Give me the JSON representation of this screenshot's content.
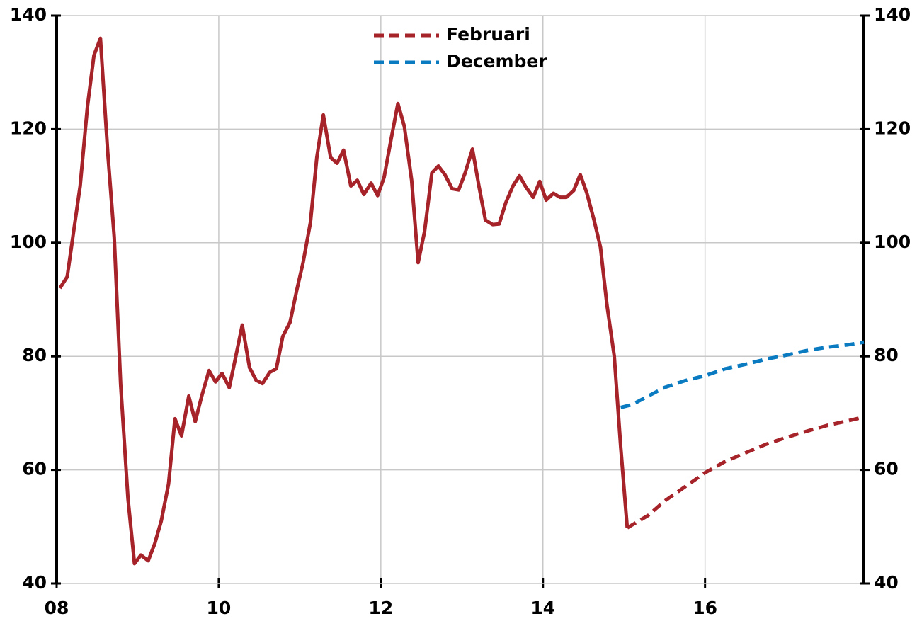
{
  "chart_data": {
    "type": "line",
    "xlim": [
      2008,
      2017.96
    ],
    "xticks": [
      {
        "value": 2008,
        "label": "08"
      },
      {
        "value": 2010,
        "label": "10"
      },
      {
        "value": 2012,
        "label": "12"
      },
      {
        "value": 2014,
        "label": "14"
      },
      {
        "value": 2016,
        "label": "16"
      }
    ],
    "ylim": [
      40,
      140
    ],
    "yticks": [
      40,
      60,
      80,
      100,
      120,
      140
    ],
    "y2lim": [
      40,
      140
    ],
    "y2ticks": [
      40,
      60,
      80,
      100,
      120,
      140
    ],
    "grid": true,
    "legend": "top",
    "series": [
      {
        "color": "#a6232a",
        "dashed": false,
        "x": [
          2008.04,
          2008.13,
          2008.21,
          2008.29,
          2008.38,
          2008.46,
          2008.54,
          2008.63,
          2008.71,
          2008.79,
          2008.88,
          2008.96,
          2009.04,
          2009.13,
          2009.21,
          2009.29,
          2009.38,
          2009.46,
          2009.54,
          2009.63,
          2009.71,
          2009.79,
          2009.88,
          2009.96,
          2010.04,
          2010.13,
          2010.21,
          2010.29,
          2010.38,
          2010.46,
          2010.54,
          2010.63,
          2010.71,
          2010.79,
          2010.88,
          2010.96,
          2011.04,
          2011.13,
          2011.21,
          2011.29,
          2011.38,
          2011.46,
          2011.54,
          2011.63,
          2011.71,
          2011.79,
          2011.88,
          2011.96,
          2012.04,
          2012.13,
          2012.21,
          2012.29,
          2012.38,
          2012.46,
          2012.54,
          2012.63,
          2012.71,
          2012.79,
          2012.88,
          2012.96,
          2013.04,
          2013.13,
          2013.21,
          2013.29,
          2013.38,
          2013.46,
          2013.54,
          2013.63,
          2013.71,
          2013.79,
          2013.88,
          2013.96,
          2014.04,
          2014.13,
          2014.21,
          2014.29,
          2014.38,
          2014.46,
          2014.54,
          2014.63,
          2014.71,
          2014.79,
          2014.88,
          2014.96,
          2015.04
        ],
        "values": [
          92,
          94,
          102,
          110,
          124,
          133,
          136,
          116,
          101,
          75,
          55,
          43.5,
          45,
          44,
          47,
          51,
          57.5,
          69,
          66,
          73,
          68.5,
          73,
          77.5,
          75.5,
          77,
          74.5,
          80,
          85.5,
          78,
          75.8,
          75.2,
          77.2,
          77.8,
          83.5,
          86,
          91.5,
          96.5,
          103.5,
          115,
          122.5,
          115,
          114,
          116.3,
          110,
          111,
          108.5,
          110.5,
          108.3,
          111.5,
          118.5,
          124.5,
          120.5,
          111,
          96.5,
          102,
          112.3,
          113.5,
          112,
          109.5,
          109.3,
          112.3,
          116.5,
          110,
          104,
          103.2,
          103.3,
          107,
          110,
          111.8,
          109.8,
          108,
          110.8,
          107.5,
          108.7,
          108,
          108,
          109.2,
          112,
          108.8,
          104,
          99.2,
          89,
          80,
          64,
          49.8
        ]
      },
      {
        "name": "Februari",
        "color": "#a6232a",
        "dashed": true,
        "x": [
          2015.04,
          2015.3,
          2015.5,
          2015.75,
          2016,
          2016.25,
          2016.5,
          2016.75,
          2017,
          2017.25,
          2017.5,
          2017.75,
          2017.96
        ],
        "values": [
          49.8,
          52,
          54.5,
          57,
          59.5,
          61.5,
          63,
          64.5,
          65.7,
          66.8,
          67.8,
          68.6,
          69.3
        ]
      },
      {
        "name": "December",
        "color": "#0a7bc1",
        "dashed": true,
        "x": [
          2014.96,
          2015.1,
          2015.3,
          2015.5,
          2015.75,
          2016,
          2016.25,
          2016.5,
          2016.75,
          2017,
          2017.25,
          2017.5,
          2017.75,
          2017.96
        ],
        "values": [
          71,
          71.5,
          73,
          74.5,
          75.7,
          76.6,
          77.8,
          78.6,
          79.5,
          80.2,
          81,
          81.6,
          82,
          82.5
        ]
      }
    ]
  }
}
